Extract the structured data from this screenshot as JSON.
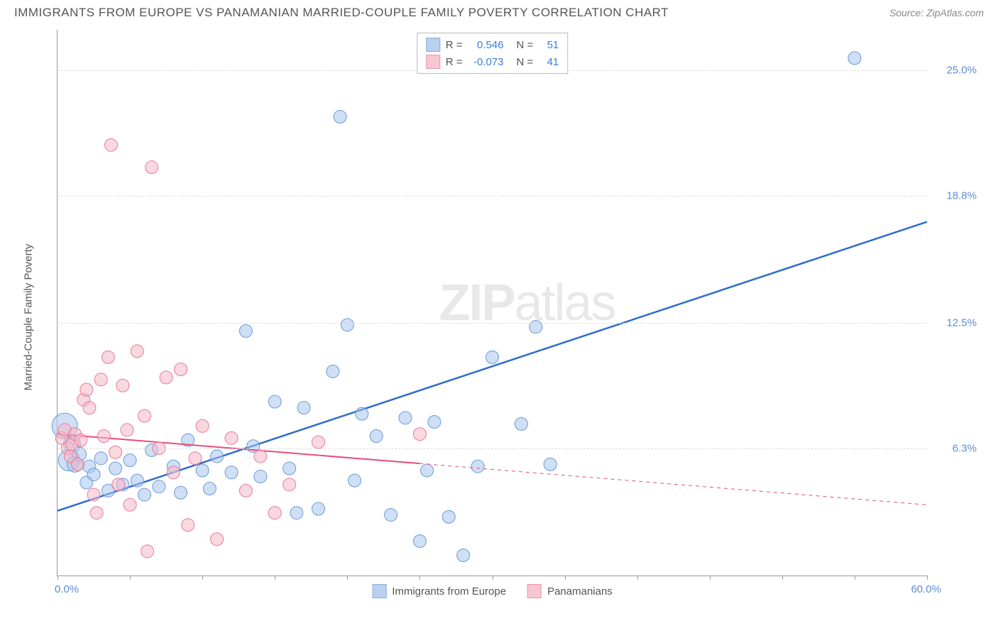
{
  "header": {
    "title": "IMMIGRANTS FROM EUROPE VS PANAMANIAN MARRIED-COUPLE FAMILY POVERTY CORRELATION CHART",
    "source_prefix": "Source: ",
    "source_name": "ZipAtlas.com"
  },
  "chart": {
    "type": "scatter",
    "ylabel": "Married-Couple Family Poverty",
    "xlim": [
      0,
      60
    ],
    "ylim": [
      0,
      27
    ],
    "x_min_label": "0.0%",
    "x_max_label": "60.0%",
    "x_tick_step": 5,
    "y_ticks": [
      {
        "value": 6.3,
        "label": "6.3%"
      },
      {
        "value": 12.5,
        "label": "12.5%"
      },
      {
        "value": 18.8,
        "label": "18.8%"
      },
      {
        "value": 25.0,
        "label": "25.0%"
      }
    ],
    "background_color": "#ffffff",
    "grid_color": "#dddddd",
    "axis_color": "#999999",
    "watermark": "ZIPatlas",
    "series": [
      {
        "name": "Immigrants from Europe",
        "color_fill": "#a8c5ec",
        "color_stroke": "#6b9bd4",
        "fill_opacity": 0.55,
        "marker_radius": 9,
        "legend_stats": {
          "R": "0.546",
          "N": "51"
        },
        "trend": {
          "x1": 0,
          "y1": 3.2,
          "x2": 60,
          "y2": 17.5,
          "solid_until_x": 60,
          "line_color": "#2e6bd0",
          "line_width": 2.5
        },
        "points": [
          {
            "x": 0.5,
            "y": 7.4,
            "r": 18
          },
          {
            "x": 0.8,
            "y": 5.7,
            "r": 15
          },
          {
            "x": 1.0,
            "y": 6.5,
            "r": 12
          },
          {
            "x": 1.2,
            "y": 5.5,
            "r": 11
          },
          {
            "x": 1.5,
            "y": 6.0,
            "r": 10
          },
          {
            "x": 2.0,
            "y": 4.6
          },
          {
            "x": 2.2,
            "y": 5.4
          },
          {
            "x": 2.5,
            "y": 5.0
          },
          {
            "x": 3.0,
            "y": 5.8
          },
          {
            "x": 3.5,
            "y": 4.2
          },
          {
            "x": 4.0,
            "y": 5.3
          },
          {
            "x": 4.5,
            "y": 4.5
          },
          {
            "x": 5.0,
            "y": 5.7
          },
          {
            "x": 5.5,
            "y": 4.7
          },
          {
            "x": 6.0,
            "y": 4.0
          },
          {
            "x": 6.5,
            "y": 6.2
          },
          {
            "x": 7.0,
            "y": 4.4
          },
          {
            "x": 8.0,
            "y": 5.4
          },
          {
            "x": 8.5,
            "y": 4.1
          },
          {
            "x": 9.0,
            "y": 6.7
          },
          {
            "x": 10.0,
            "y": 5.2
          },
          {
            "x": 10.5,
            "y": 4.3
          },
          {
            "x": 11.0,
            "y": 5.9
          },
          {
            "x": 12.0,
            "y": 5.1
          },
          {
            "x": 13.0,
            "y": 12.1
          },
          {
            "x": 13.5,
            "y": 6.4
          },
          {
            "x": 14.0,
            "y": 4.9
          },
          {
            "x": 15.0,
            "y": 8.6
          },
          {
            "x": 16.0,
            "y": 5.3
          },
          {
            "x": 17.0,
            "y": 8.3
          },
          {
            "x": 18.0,
            "y": 3.3
          },
          {
            "x": 19.0,
            "y": 10.1
          },
          {
            "x": 19.5,
            "y": 22.7
          },
          {
            "x": 20.0,
            "y": 12.4
          },
          {
            "x": 20.5,
            "y": 4.7
          },
          {
            "x": 21.0,
            "y": 8.0
          },
          {
            "x": 22.0,
            "y": 6.9
          },
          {
            "x": 23.0,
            "y": 3.0
          },
          {
            "x": 24.0,
            "y": 7.8
          },
          {
            "x": 25.0,
            "y": 1.7
          },
          {
            "x": 25.5,
            "y": 5.2
          },
          {
            "x": 26.0,
            "y": 7.6
          },
          {
            "x": 27.0,
            "y": 2.9
          },
          {
            "x": 28.0,
            "y": 1.0
          },
          {
            "x": 29.0,
            "y": 5.4
          },
          {
            "x": 30.0,
            "y": 10.8
          },
          {
            "x": 32.0,
            "y": 7.5
          },
          {
            "x": 33.0,
            "y": 12.3
          },
          {
            "x": 34.0,
            "y": 5.5
          },
          {
            "x": 55.0,
            "y": 25.6
          },
          {
            "x": 16.5,
            "y": 3.1
          }
        ]
      },
      {
        "name": "Panamanians",
        "color_fill": "#f5b8c7",
        "color_stroke": "#e77a9b",
        "fill_opacity": 0.55,
        "marker_radius": 9,
        "legend_stats": {
          "R": "-0.073",
          "N": "41"
        },
        "trend": {
          "x1": 0,
          "y1": 7.0,
          "x2": 60,
          "y2": 3.5,
          "solid_until_x": 25,
          "line_color": "#e84b7a",
          "line_width": 2
        },
        "points": [
          {
            "x": 0.3,
            "y": 6.8
          },
          {
            "x": 0.5,
            "y": 7.2
          },
          {
            "x": 0.7,
            "y": 6.3
          },
          {
            "x": 0.9,
            "y": 5.9
          },
          {
            "x": 1.0,
            "y": 6.5
          },
          {
            "x": 1.2,
            "y": 7.0
          },
          {
            "x": 1.4,
            "y": 5.5
          },
          {
            "x": 1.6,
            "y": 6.7
          },
          {
            "x": 1.8,
            "y": 8.7
          },
          {
            "x": 2.0,
            "y": 9.2
          },
          {
            "x": 2.2,
            "y": 8.3
          },
          {
            "x": 2.5,
            "y": 4.0
          },
          {
            "x": 2.7,
            "y": 3.1
          },
          {
            "x": 3.0,
            "y": 9.7
          },
          {
            "x": 3.2,
            "y": 6.9
          },
          {
            "x": 3.5,
            "y": 10.8
          },
          {
            "x": 3.7,
            "y": 21.3
          },
          {
            "x": 4.0,
            "y": 6.1
          },
          {
            "x": 4.2,
            "y": 4.5
          },
          {
            "x": 4.5,
            "y": 9.4
          },
          {
            "x": 4.8,
            "y": 7.2
          },
          {
            "x": 5.0,
            "y": 3.5
          },
          {
            "x": 5.5,
            "y": 11.1
          },
          {
            "x": 6.0,
            "y": 7.9
          },
          {
            "x": 6.2,
            "y": 1.2
          },
          {
            "x": 6.5,
            "y": 20.2
          },
          {
            "x": 7.0,
            "y": 6.3
          },
          {
            "x": 7.5,
            "y": 9.8
          },
          {
            "x": 8.0,
            "y": 5.1
          },
          {
            "x": 8.5,
            "y": 10.2
          },
          {
            "x": 9.0,
            "y": 2.5
          },
          {
            "x": 9.5,
            "y": 5.8
          },
          {
            "x": 10.0,
            "y": 7.4
          },
          {
            "x": 11.0,
            "y": 1.8
          },
          {
            "x": 12.0,
            "y": 6.8
          },
          {
            "x": 13.0,
            "y": 4.2
          },
          {
            "x": 14.0,
            "y": 5.9
          },
          {
            "x": 15.0,
            "y": 3.1
          },
          {
            "x": 16.0,
            "y": 4.5
          },
          {
            "x": 18.0,
            "y": 6.6
          },
          {
            "x": 25.0,
            "y": 7.0
          }
        ]
      }
    ]
  }
}
